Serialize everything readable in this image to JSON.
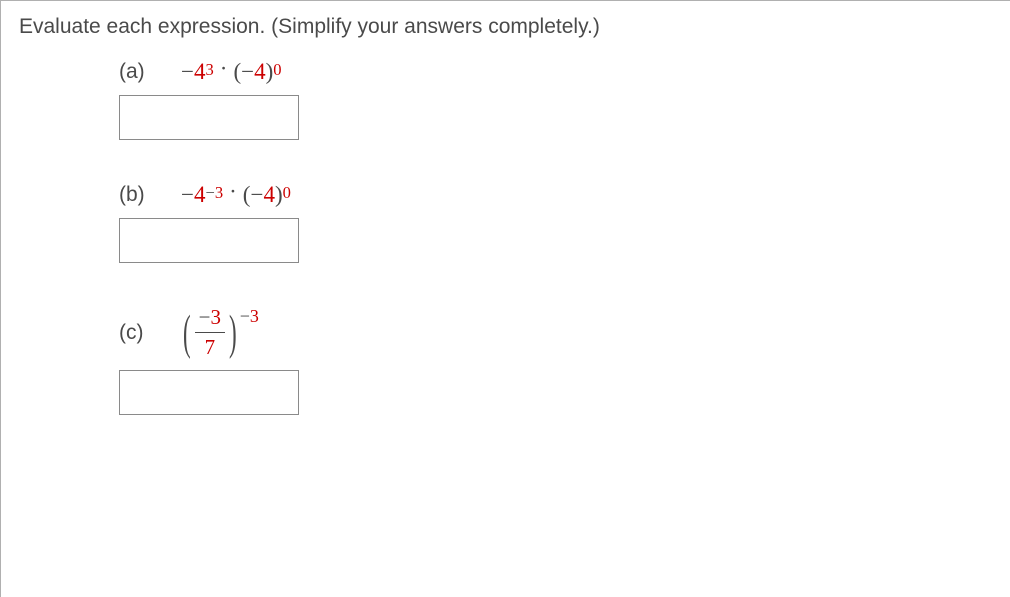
{
  "prompt": "Evaluate each expression. (Simplify your answers completely.)",
  "parts": {
    "a": {
      "label": "(a)",
      "expr": {
        "t1_sign": "−",
        "t1_base": "4",
        "t1_exp": "3",
        "t2_sign": "−",
        "t2_base": "4",
        "t2_exp": "0"
      },
      "answer": ""
    },
    "b": {
      "label": "(b)",
      "expr": {
        "t1_sign": "−",
        "t1_base": "4",
        "t1_exp_sign": "−",
        "t1_exp": "3",
        "t2_sign": "−",
        "t2_base": "4",
        "t2_exp": "0"
      },
      "answer": ""
    },
    "c": {
      "label": "(c)",
      "expr": {
        "num_sign": "−",
        "num": "3",
        "den": "7",
        "outer_exp_sign": "−",
        "outer_exp": "3"
      },
      "answer": ""
    }
  },
  "style": {
    "text_color": "#4a4a4a",
    "accent_color": "#cc0000",
    "border_color": "#8a8a8a",
    "prompt_fontsize": 21,
    "expr_fontsize": 23,
    "answer_box_width": 180,
    "answer_box_height": 45
  }
}
